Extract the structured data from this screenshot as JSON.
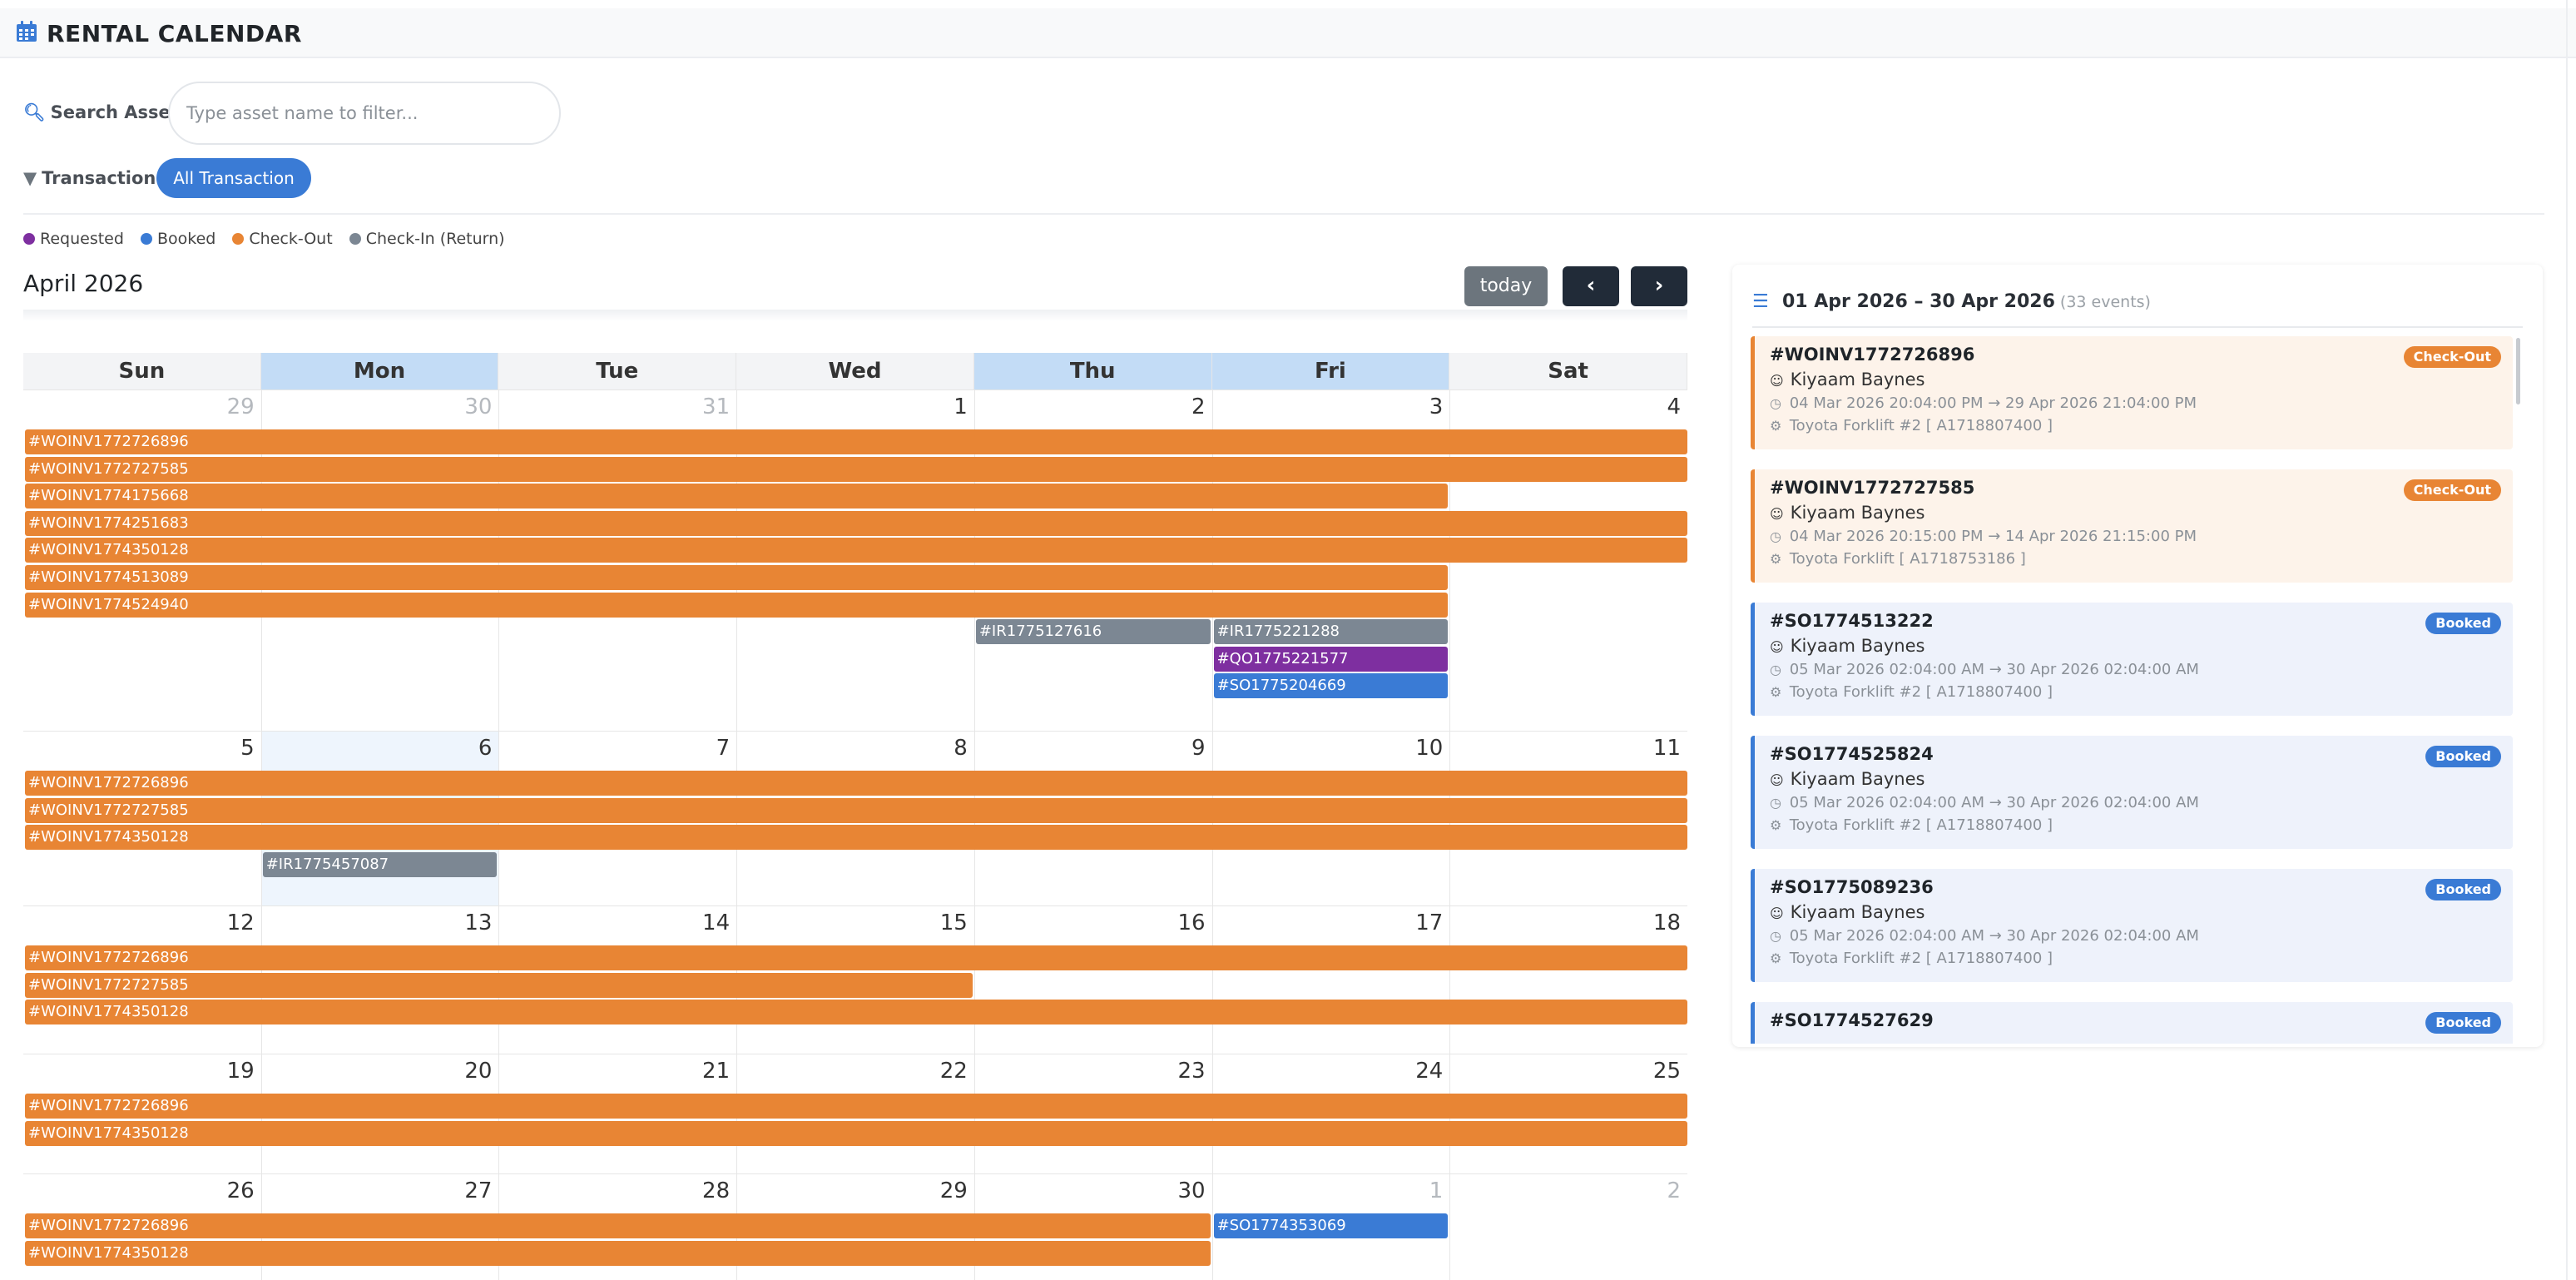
{
  "header": {
    "title": "RENTAL CALENDAR"
  },
  "search": {
    "label": "Search Asset:",
    "placeholder": "Type asset name to filter..."
  },
  "transaction": {
    "label": "Transaction:",
    "selected": "All Transaction"
  },
  "legend": [
    {
      "label": "Requested",
      "color": "#7e2fa0"
    },
    {
      "label": "Booked",
      "color": "#3a7bd5"
    },
    {
      "label": "Check-Out",
      "color": "#e88534"
    },
    {
      "label": "Check-In (Return)",
      "color": "#7c8793"
    }
  ],
  "calendar": {
    "month_title": "April 2026",
    "today_label": "today",
    "days_of_week": [
      "Sun",
      "Mon",
      "Tue",
      "Wed",
      "Thu",
      "Fri",
      "Sat"
    ],
    "highlighted_days": [
      "Mon",
      "Thu",
      "Fri"
    ],
    "weeks": [
      {
        "days": [
          "29",
          "30",
          "31",
          "1",
          "2",
          "3",
          "4"
        ],
        "other_month": [
          true,
          true,
          true,
          false,
          false,
          false,
          false
        ],
        "events": [
          {
            "label": "#WOINV1772726896",
            "type": "co",
            "start": 0,
            "span": 7
          },
          {
            "label": "#WOINV1772727585",
            "type": "co",
            "start": 0,
            "span": 7
          },
          {
            "label": "#WOINV1774175668",
            "type": "co",
            "start": 0,
            "span": 6
          },
          {
            "label": "#WOINV1774251683",
            "type": "co",
            "start": 0,
            "span": 7
          },
          {
            "label": "#WOINV1774350128",
            "type": "co",
            "start": 0,
            "span": 7
          },
          {
            "label": "#WOINV1774513089",
            "type": "co",
            "start": 0,
            "span": 6
          },
          {
            "label": "#WOINV1774524940",
            "type": "co",
            "start": 0,
            "span": 6
          },
          {
            "label": "#IR1775127616",
            "type": "ci",
            "start": 4,
            "span": 1,
            "row": 7
          },
          {
            "label": "#IR1775221288",
            "type": "ci",
            "start": 5,
            "span": 1,
            "row": 7
          },
          {
            "label": "#QO1775221577",
            "type": "rq",
            "start": 5,
            "span": 1,
            "row": 8
          },
          {
            "label": "#SO1775204669",
            "type": "bk",
            "start": 5,
            "span": 1,
            "row": 9
          }
        ]
      },
      {
        "days": [
          "5",
          "6",
          "7",
          "8",
          "9",
          "10",
          "11"
        ],
        "other_month": [
          false,
          false,
          false,
          false,
          false,
          false,
          false
        ],
        "events": [
          {
            "label": "#WOINV1772726896",
            "type": "co",
            "start": 0,
            "span": 7
          },
          {
            "label": "#WOINV1772727585",
            "type": "co",
            "start": 0,
            "span": 7
          },
          {
            "label": "#WOINV1774350128",
            "type": "co",
            "start": 0,
            "span": 7
          },
          {
            "label": "#IR1775457087",
            "type": "ci",
            "start": 1,
            "span": 1
          }
        ]
      },
      {
        "days": [
          "12",
          "13",
          "14",
          "15",
          "16",
          "17",
          "18"
        ],
        "other_month": [
          false,
          false,
          false,
          false,
          false,
          false,
          false
        ],
        "events": [
          {
            "label": "#WOINV1772726896",
            "type": "co",
            "start": 0,
            "span": 7
          },
          {
            "label": "#WOINV1772727585",
            "type": "co",
            "start": 0,
            "span": 4
          },
          {
            "label": "#WOINV1774350128",
            "type": "co",
            "start": 0,
            "span": 7
          }
        ]
      },
      {
        "days": [
          "19",
          "20",
          "21",
          "22",
          "23",
          "24",
          "25"
        ],
        "other_month": [
          false,
          false,
          false,
          false,
          false,
          false,
          false
        ],
        "events": [
          {
            "label": "#WOINV1772726896",
            "type": "co",
            "start": 0,
            "span": 7
          },
          {
            "label": "#WOINV1774350128",
            "type": "co",
            "start": 0,
            "span": 7
          }
        ]
      },
      {
        "days": [
          "26",
          "27",
          "28",
          "29",
          "30",
          "1",
          "2"
        ],
        "other_month": [
          false,
          false,
          false,
          false,
          false,
          true,
          true
        ],
        "events": [
          {
            "label": "#WOINV1772726896",
            "type": "co",
            "start": 0,
            "span": 5
          },
          {
            "label": "#SO1774353069",
            "type": "bk",
            "start": 5,
            "span": 1,
            "row": 0
          },
          {
            "label": "#WOINV1774350128",
            "type": "co",
            "start": 0,
            "span": 5
          }
        ]
      }
    ]
  },
  "panel": {
    "range": "01 Apr 2026 – 30 Apr 2026",
    "count": "(33 events)",
    "items": [
      {
        "ref": "#WOINV1772726896",
        "status": "Check-Out",
        "type": "co",
        "customer": "Kiyaam Baynes",
        "start": "04 Mar 2026 20:04:00 PM",
        "end": "29 Apr 2026 21:04:00 PM",
        "asset": "Toyota Forklift #2 [ A1718807400 ]"
      },
      {
        "ref": "#WOINV1772727585",
        "status": "Check-Out",
        "type": "co",
        "customer": "Kiyaam Baynes",
        "start": "04 Mar 2026 20:15:00 PM",
        "end": "14 Apr 2026 21:15:00 PM",
        "asset": "Toyota Forklift [ A1718753186 ]"
      },
      {
        "ref": "#SO1774513222",
        "status": "Booked",
        "type": "bk",
        "customer": "Kiyaam Baynes",
        "start": "05 Mar 2026 02:04:00 AM",
        "end": "30 Apr 2026 02:04:00 AM",
        "asset": "Toyota Forklift #2 [ A1718807400 ]"
      },
      {
        "ref": "#SO1774525824",
        "status": "Booked",
        "type": "bk",
        "customer": "Kiyaam Baynes",
        "start": "05 Mar 2026 02:04:00 AM",
        "end": "30 Apr 2026 02:04:00 AM",
        "asset": "Toyota Forklift #2 [ A1718807400 ]"
      },
      {
        "ref": "#SO1775089236",
        "status": "Booked",
        "type": "bk",
        "customer": "Kiyaam Baynes",
        "start": "05 Mar 2026 02:04:00 AM",
        "end": "30 Apr 2026 02:04:00 AM",
        "asset": "Toyota Forklift #2 [ A1718807400 ]"
      },
      {
        "ref": "#SO1774527629",
        "status": "Booked",
        "type": "bk",
        "customer": "",
        "start": "",
        "end": "",
        "asset": ""
      }
    ]
  }
}
